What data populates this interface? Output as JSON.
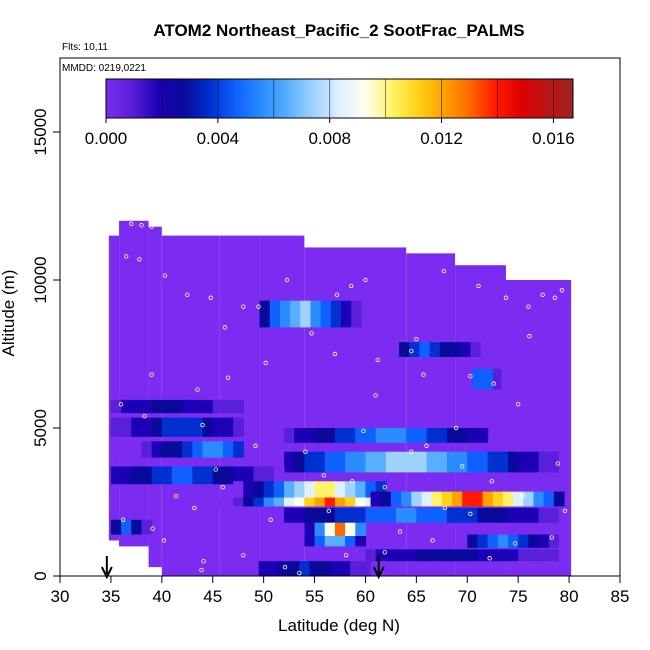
{
  "chart_data": {
    "type": "heatmap",
    "title": "ATOM2 Northeast_Pacific_2 SootFrac_PALMS",
    "subtitle_flights": "Flts: 10,11",
    "subtitle_dates": "MMDD: 0219,0221",
    "xlabel": "Latitude (deg N)",
    "ylabel": "Altitude (m)",
    "xlim": [
      30,
      85
    ],
    "ylim": [
      0,
      17500
    ],
    "x_ticks": [
      "30",
      "35",
      "40",
      "45",
      "50",
      "55",
      "60",
      "65",
      "70",
      "75",
      "80",
      "85"
    ],
    "y_ticks": [
      "0",
      "5000",
      "10000",
      "15000"
    ],
    "colorbar": {
      "range": [
        0,
        0.0167
      ],
      "tick_labels": [
        "0.000",
        "0.004",
        "0.008",
        "0.012",
        "0.016"
      ],
      "tick_values": [
        0,
        0.004,
        0.008,
        0.012,
        0.016
      ],
      "colors": [
        "#7b2cf0",
        "#5a1fd8",
        "#1d00b5",
        "#0a0a9a",
        "#0030d0",
        "#1060ff",
        "#2a8cff",
        "#56b0ff",
        "#9fd2ff",
        "#dff0ff",
        "#fffff0",
        "#fff36a",
        "#ffd21a",
        "#ffa200",
        "#ff6a00",
        "#ff1a00",
        "#e00000",
        "#b81414",
        "#a02222"
      ]
    },
    "background_value": 0.0004,
    "columns": [
      {
        "lat": [
          34.8,
          35.8
        ],
        "alt": [
          1200,
          11500
        ]
      },
      {
        "lat": [
          35.8,
          38.7
        ],
        "alt": [
          1000,
          12000
        ]
      },
      {
        "lat": [
          38.7,
          40.0
        ],
        "alt": [
          300,
          11800
        ]
      },
      {
        "lat": [
          40.0,
          45.7
        ],
        "alt": [
          0,
          11500
        ]
      },
      {
        "lat": [
          45.7,
          49.6
        ],
        "alt": [
          0,
          11500
        ]
      },
      {
        "lat": [
          49.6,
          54.0
        ],
        "alt": [
          0,
          11500
        ]
      },
      {
        "lat": [
          54.0,
          64.0
        ],
        "alt": [
          0,
          11100
        ]
      },
      {
        "lat": [
          64.0,
          68.8
        ],
        "alt": [
          0,
          10900
        ]
      },
      {
        "lat": [
          68.8,
          73.8
        ],
        "alt": [
          0,
          10500
        ]
      },
      {
        "lat": [
          73.8,
          80.2
        ],
        "alt": [
          0,
          10000
        ]
      }
    ],
    "bands": [
      {
        "lat": [
          49.6,
          60.2
        ],
        "alt": [
          8400,
          9300
        ],
        "peak": 0.0075,
        "center": 53.7
      },
      {
        "lat": [
          63.3,
          73.5
        ],
        "alt": [
          7400,
          7900
        ],
        "peak": 0.0045,
        "center": 66.0
      },
      {
        "lat": [
          70.5,
          73.3
        ],
        "alt": [
          6300,
          7000
        ],
        "peak": 0.0065,
        "center": 71.5
      },
      {
        "lat": [
          35.0,
          48.0
        ],
        "alt": [
          5500,
          5950
        ],
        "peak": 0.003,
        "center": 40.5
      },
      {
        "lat": [
          35.0,
          48.0
        ],
        "alt": [
          4700,
          5350
        ],
        "peak": 0.004,
        "center": 42.0
      },
      {
        "lat": [
          35.0,
          48.0
        ],
        "alt": [
          4000,
          4550
        ],
        "peak": 0.0055,
        "center": 45.0
      },
      {
        "lat": [
          52.0,
          72.0
        ],
        "alt": [
          4500,
          5000
        ],
        "peak": 0.006,
        "center": 62.5
      },
      {
        "lat": [
          52.0,
          79.5
        ],
        "alt": [
          3500,
          4200
        ],
        "peak": 0.008,
        "center": 64.0
      },
      {
        "lat": [
          35.0,
          52.0
        ],
        "alt": [
          3100,
          3700
        ],
        "peak": 0.0045,
        "center": 42.0
      },
      {
        "lat": [
          47.0,
          62.0
        ],
        "alt": [
          2600,
          3200
        ],
        "peak": 0.0105,
        "center": 56.0
      },
      {
        "lat": [
          45.0,
          62.0
        ],
        "alt": [
          2350,
          2650
        ],
        "peak": 0.0135,
        "center": 56.5
      },
      {
        "lat": [
          60.5,
          79.5
        ],
        "alt": [
          2350,
          2850
        ],
        "peak": 0.0145,
        "center": 70.5
      },
      {
        "lat": [
          52.0,
          80.0
        ],
        "alt": [
          1800,
          2300
        ],
        "peak": 0.0055,
        "center": 64.0
      },
      {
        "lat": [
          35.0,
          39.0
        ],
        "alt": [
          1400,
          1900
        ],
        "peak": 0.005,
        "center": 36.5
      },
      {
        "lat": [
          54.0,
          60.0
        ],
        "alt": [
          1300,
          1800
        ],
        "peak": 0.013,
        "center": 57.5
      },
      {
        "lat": [
          54.0,
          60.0
        ],
        "alt": [
          1000,
          1350
        ],
        "peak": 0.008,
        "center": 57.0
      },
      {
        "lat": [
          70.0,
          80.0
        ],
        "alt": [
          950,
          1400
        ],
        "peak": 0.0055,
        "center": 73.5
      },
      {
        "lat": [
          60.0,
          80.0
        ],
        "alt": [
          500,
          900
        ],
        "peak": 0.003,
        "center": 68.0
      },
      {
        "lat": [
          49.5,
          62.0
        ],
        "alt": [
          0,
          500
        ],
        "peak": 0.0035,
        "center": 54.0
      }
    ],
    "arrows_lat": [
      34.6,
      61.3
    ],
    "track_points": [
      [
        37.0,
        11900
      ],
      [
        38.0,
        11850
      ],
      [
        39.0,
        11800
      ],
      [
        36.5,
        10800
      ],
      [
        37.8,
        10700
      ],
      [
        40.3,
        10150
      ],
      [
        42.5,
        9500
      ],
      [
        44.8,
        9400
      ],
      [
        48.0,
        9100
      ],
      [
        49.5,
        9100
      ],
      [
        52.3,
        10000
      ],
      [
        57.2,
        9500
      ],
      [
        58.6,
        9800
      ],
      [
        60.0,
        10000
      ],
      [
        65.0,
        8000
      ],
      [
        67.7,
        10300
      ],
      [
        71.1,
        9800
      ],
      [
        73.8,
        9400
      ],
      [
        76.0,
        9100
      ],
      [
        79.3,
        9650
      ],
      [
        77.4,
        9500
      ],
      [
        78.6,
        9400
      ],
      [
        64.5,
        7600
      ],
      [
        70.3,
        6750
      ],
      [
        72.6,
        6500
      ],
      [
        76.1,
        8100
      ],
      [
        61.2,
        7300
      ],
      [
        57.0,
        7500
      ],
      [
        50.2,
        7200
      ],
      [
        46.5,
        6700
      ],
      [
        43.5,
        6300
      ],
      [
        39.0,
        6800
      ],
      [
        36.0,
        5800
      ],
      [
        38.3,
        5400
      ],
      [
        44.0,
        5100
      ],
      [
        49.2,
        4400
      ],
      [
        54.1,
        4200
      ],
      [
        55.9,
        3400
      ],
      [
        58.7,
        3200
      ],
      [
        61.9,
        3000
      ],
      [
        64.5,
        4200
      ],
      [
        66.0,
        4400
      ],
      [
        69.5,
        3700
      ],
      [
        72.4,
        3200
      ],
      [
        75.5,
        2700
      ],
      [
        79.6,
        2200
      ],
      [
        46.0,
        3000
      ],
      [
        43.2,
        2300
      ],
      [
        39.1,
        1600
      ],
      [
        36.2,
        1900
      ],
      [
        40.2,
        1200
      ],
      [
        48.0,
        700
      ],
      [
        52.1,
        300
      ],
      [
        53.5,
        100
      ],
      [
        58.1,
        700
      ],
      [
        61.9,
        800
      ],
      [
        66.6,
        1200
      ],
      [
        70.3,
        2100
      ],
      [
        72.2,
        600
      ],
      [
        74.7,
        1100
      ],
      [
        78.3,
        1300
      ],
      [
        67.8,
        2300
      ],
      [
        63.4,
        1500
      ],
      [
        56.4,
        2200
      ],
      [
        50.7,
        1900
      ],
      [
        45.3,
        3600
      ],
      [
        41.4,
        2700
      ],
      [
        43.9,
        200
      ],
      [
        54.7,
        8200
      ],
      [
        46.2,
        8400
      ],
      [
        61.0,
        6100
      ],
      [
        68.9,
        5000
      ],
      [
        75.0,
        5800
      ],
      [
        78.9,
        3800
      ],
      [
        44.1,
        500
      ],
      [
        59.8,
        4900
      ],
      [
        65.7,
        6800
      ]
    ]
  }
}
